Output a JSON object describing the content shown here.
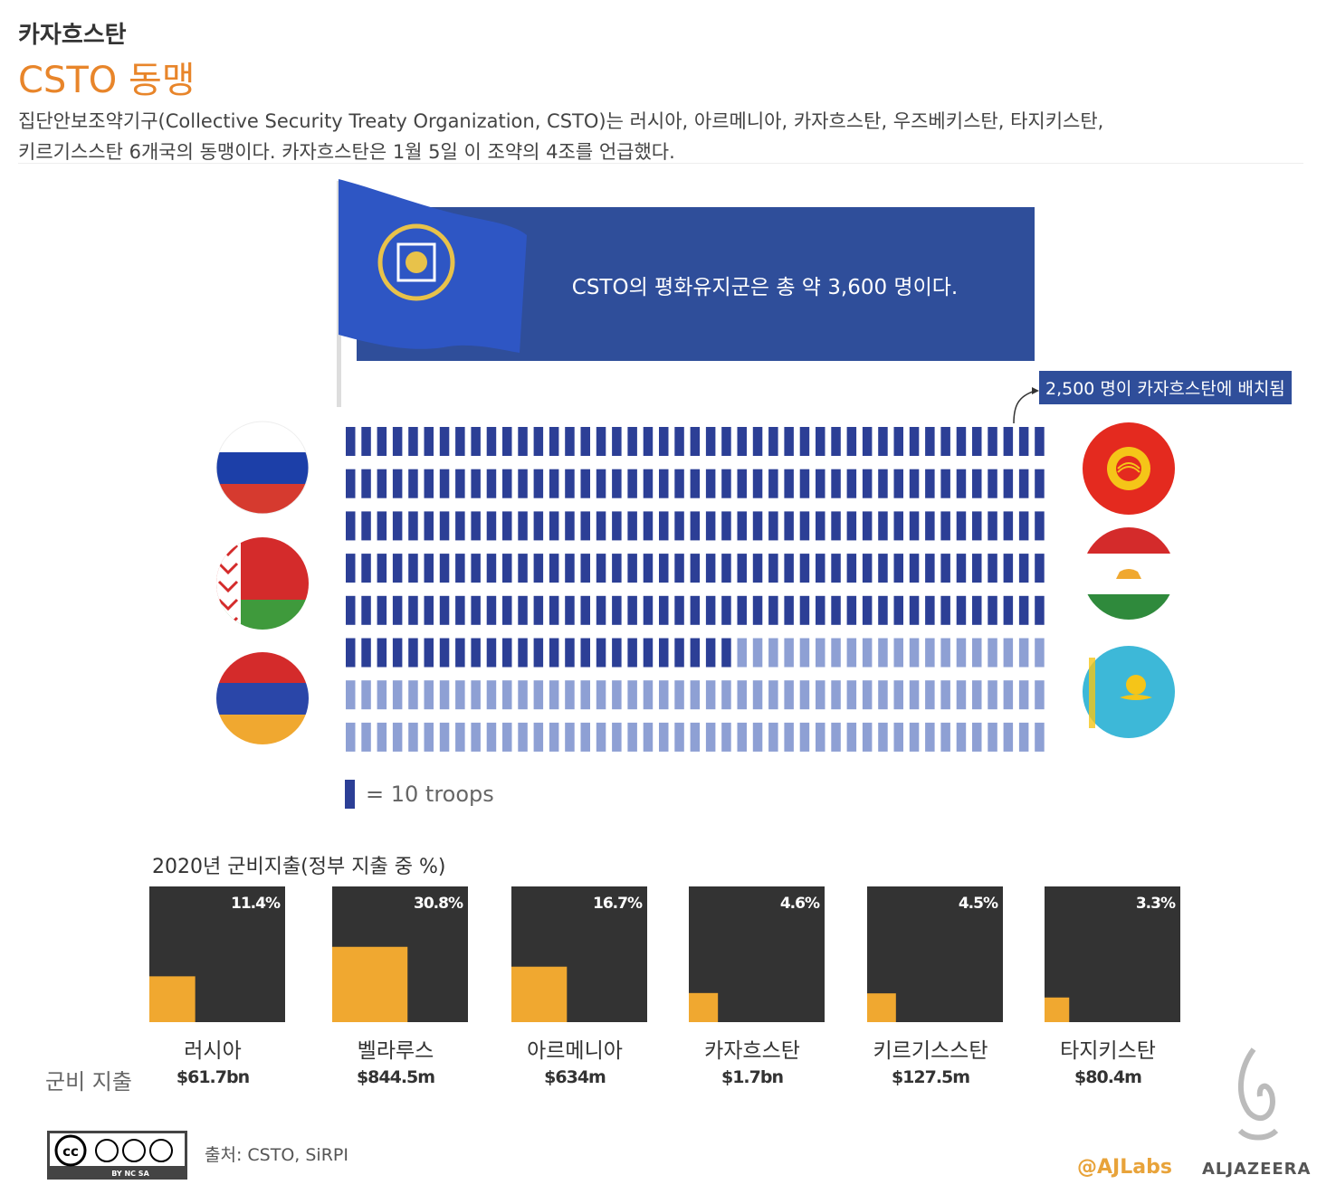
{
  "header": {
    "kicker": "카자흐스탄",
    "headline": "CSTO 동맹",
    "description_line1": "집단안보조약기구(Collective Security Treaty Organization, CSTO)는 러시아, 아르메니아, 카자흐스탄, 우즈베키스탄, 타지키스탄,",
    "description_line2": "키르기스스탄 6개국의 동맹이다. 카자흐스탄은 1월 5일 이 조약의 4조를 언급했다."
  },
  "banner": {
    "text": "CSTO의 평화유지군은 총 약 3,600 명이다."
  },
  "callout": {
    "text": "2,500 명이 카자흐스탄에 배치됨"
  },
  "legend": {
    "text": "= 10 troops"
  },
  "flags": {
    "left": [
      "russia-flag-icon",
      "belarus-flag-icon",
      "armenia-flag-icon"
    ],
    "right": [
      "kyrgyzstan-flag-icon",
      "tajikistan-flag-icon",
      "kazakhstan-flag-icon"
    ]
  },
  "spending": {
    "title": "2020년 군비지출(정부 지출 중 %)",
    "amount_label": "군비 지출"
  },
  "footer": {
    "source": "출처: CSTO, SiRPI",
    "license_badge": "BY NC SA",
    "handle": "@AJLabs",
    "brand": "ALJAZEERA"
  },
  "colors": {
    "accent_orange": "#e8852a",
    "banner_blue": "#2f4e9a",
    "troop_dark": "#2c3f96",
    "troop_light": "#8ea0d4",
    "bar_dark": "#333333",
    "bar_fill": "#f0a830"
  },
  "chart_data": [
    {
      "type": "pictogram",
      "unit_value": 10,
      "unit_label": "= 10 troops",
      "total": 3600,
      "highlighted": 2500,
      "icons_per_row": 45,
      "highlighted_label": "2,500 명이 카자흐스탄에 배치됨"
    },
    {
      "type": "bar",
      "title": "2020년 군비지출(정부 지출 중 %)",
      "categories": [
        "러시아",
        "벨라루스",
        "아르메니아",
        "카자흐스탄",
        "키르기스스탄",
        "타지키스탄"
      ],
      "values": [
        11.4,
        30.8,
        16.7,
        4.6,
        4.5,
        3.3
      ],
      "value_labels": [
        "11.4%",
        "30.8%",
        "16.7%",
        "4.6%",
        "4.5%",
        "3.3%"
      ],
      "amounts": [
        "$61.7bn",
        "$844.5m",
        "$634m",
        "$1.7bn",
        "$127.5m",
        "$80.4m"
      ],
      "ylim": [
        0,
        100
      ]
    }
  ]
}
